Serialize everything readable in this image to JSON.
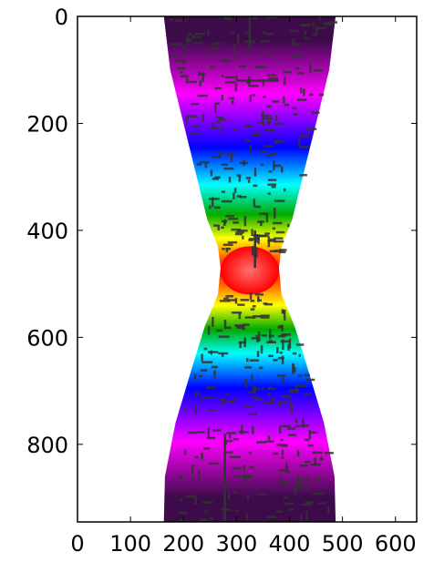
{
  "chart_data": {
    "type": "heatmap",
    "title": "",
    "xlabel": "",
    "ylabel": "",
    "xlim": [
      0,
      640
    ],
    "ylim": [
      945,
      0
    ],
    "x_ticks": [
      0,
      100,
      200,
      300,
      400,
      500,
      600
    ],
    "x_tick_labels": [
      "0",
      "100",
      "200",
      "300",
      "400",
      "500",
      "600"
    ],
    "y_ticks": [
      0,
      200,
      400,
      600,
      800
    ],
    "y_tick_labels": [
      "0",
      "200",
      "400",
      "600",
      "800"
    ],
    "colormap": "gist_rainbow-like",
    "colors": [
      "#3d0b4a",
      "#ff00ff",
      "#0000ff",
      "#00ffff",
      "#00aa00",
      "#ffff00",
      "#ff0000"
    ],
    "background_color": "#ffffff",
    "mask_color": "#333333",
    "grid": false,
    "profile": {
      "description_axis": "y",
      "center_x": 325,
      "half_width_samples": [
        {
          "y": 0,
          "half_width": 162
        },
        {
          "y": 100,
          "half_width": 150
        },
        {
          "y": 200,
          "half_width": 125
        },
        {
          "y": 300,
          "half_width": 100
        },
        {
          "y": 380,
          "half_width": 80
        },
        {
          "y": 430,
          "half_width": 60
        },
        {
          "y": 470,
          "half_width": 55
        },
        {
          "y": 520,
          "half_width": 60
        },
        {
          "y": 580,
          "half_width": 85
        },
        {
          "y": 660,
          "half_width": 110
        },
        {
          "y": 760,
          "half_width": 140
        },
        {
          "y": 860,
          "half_width": 160
        },
        {
          "y": 945,
          "half_width": 162
        }
      ]
    },
    "color_bands": [
      {
        "y_from": 0,
        "y_to": 90,
        "color": "#3d0b4a"
      },
      {
        "y_from": 90,
        "y_to": 200,
        "color": "#ff00ff"
      },
      {
        "y_from": 200,
        "y_to": 290,
        "color": "#0000ff"
      },
      {
        "y_from": 290,
        "y_to": 340,
        "color": "#00ffff"
      },
      {
        "y_from": 340,
        "y_to": 400,
        "color": "#00aa00"
      },
      {
        "y_from": 400,
        "y_to": 430,
        "color": "#ffff00"
      },
      {
        "y_from": 430,
        "y_to": 520,
        "color": "#ff0000"
      },
      {
        "y_from": 520,
        "y_to": 560,
        "color": "#ffff00"
      },
      {
        "y_from": 560,
        "y_to": 610,
        "color": "#00aa00"
      },
      {
        "y_from": 610,
        "y_to": 650,
        "color": "#00ffff"
      },
      {
        "y_from": 650,
        "y_to": 740,
        "color": "#0000ff"
      },
      {
        "y_from": 740,
        "y_to": 850,
        "color": "#ff00ff"
      },
      {
        "y_from": 850,
        "y_to": 945,
        "color": "#3d0b4a"
      }
    ]
  }
}
